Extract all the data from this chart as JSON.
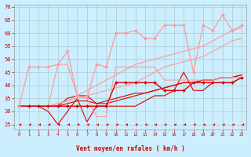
{
  "background_color": "#cceeff",
  "grid_color": "#aacccc",
  "xlabel": "Vent moyen/en rafales ( km/h )",
  "ylabel_ticks": [
    25,
    30,
    35,
    40,
    45,
    50,
    55,
    60,
    65,
    70
  ],
  "xlim": [
    -0.5,
    23.5
  ],
  "ylim": [
    23,
    71
  ],
  "x_values": [
    0,
    1,
    2,
    3,
    4,
    5,
    6,
    7,
    8,
    9,
    10,
    11,
    12,
    13,
    14,
    15,
    16,
    17,
    18,
    19,
    20,
    21,
    22,
    23
  ],
  "series": [
    {
      "x": [
        0,
        1,
        2,
        3,
        4,
        5,
        6,
        7,
        8,
        9,
        10,
        11,
        12,
        13,
        14,
        15,
        16,
        17,
        18,
        19,
        20,
        21,
        22,
        23
      ],
      "y": [
        32,
        32,
        32,
        32,
        32,
        32,
        32,
        32,
        32,
        32,
        41,
        41,
        41,
        41,
        41,
        38,
        38,
        38,
        41,
        41,
        41,
        41,
        41,
        43
      ],
      "color": "#dd0000",
      "linewidth": 1.0,
      "marker": "D",
      "markersize": 2.0
    },
    {
      "x": [
        0,
        1,
        2,
        3,
        4,
        5,
        6,
        7,
        8,
        9,
        10,
        11,
        12,
        13,
        14,
        15,
        16,
        17,
        18,
        19,
        20,
        21,
        22,
        23
      ],
      "y": [
        32,
        32,
        32,
        30,
        25,
        30,
        35,
        26,
        32,
        32,
        32,
        32,
        32,
        34,
        36,
        36,
        38,
        45,
        38,
        38,
        41,
        41,
        41,
        43
      ],
      "color": "#dd0000",
      "linewidth": 0.8,
      "marker": null,
      "markersize": 0
    },
    {
      "x": [
        0,
        1,
        2,
        3,
        4,
        5,
        6,
        7,
        8,
        9,
        10,
        11,
        12,
        13,
        14,
        15,
        16,
        17,
        18,
        19,
        20,
        21,
        22,
        23
      ],
      "y": [
        32,
        32,
        32,
        32,
        32,
        35,
        36,
        36,
        33,
        33,
        34,
        35,
        36,
        37,
        38,
        39,
        40,
        41,
        41,
        42,
        42,
        43,
        43,
        44
      ],
      "color": "#dd0000",
      "linewidth": 0.8,
      "marker": null,
      "markersize": 0
    },
    {
      "x": [
        0,
        1,
        2,
        3,
        4,
        5,
        6,
        7,
        8,
        9,
        10,
        11,
        12,
        13,
        14,
        15,
        16,
        17,
        18,
        19,
        20,
        21,
        22,
        23
      ],
      "y": [
        32,
        32,
        32,
        32,
        32,
        33,
        34,
        34,
        33,
        34,
        35,
        36,
        37,
        37,
        38,
        39,
        40,
        41,
        41,
        42,
        42,
        43,
        43,
        44
      ],
      "color": "#dd0000",
      "linewidth": 0.8,
      "marker": null,
      "markersize": 0
    },
    {
      "x": [
        0,
        1,
        2,
        3,
        4,
        5,
        6,
        7,
        8,
        9,
        10,
        11,
        12,
        13,
        14,
        15,
        16,
        17,
        18,
        19,
        20,
        21,
        22,
        23
      ],
      "y": [
        32,
        47,
        47,
        47,
        48,
        53,
        36,
        35,
        48,
        47,
        60,
        60,
        61,
        58,
        58,
        63,
        63,
        63,
        45,
        63,
        61,
        67,
        61,
        63
      ],
      "color": "#ff9999",
      "linewidth": 0.9,
      "marker": "D",
      "markersize": 2.0
    },
    {
      "x": [
        0,
        1,
        2,
        3,
        4,
        5,
        6,
        7,
        8,
        9,
        10,
        11,
        12,
        13,
        14,
        15,
        16,
        17,
        18,
        19,
        20,
        21,
        22,
        23
      ],
      "y": [
        32,
        32,
        32,
        32,
        48,
        48,
        36,
        35,
        28,
        28,
        47,
        47,
        47,
        47,
        47,
        42,
        42,
        42,
        42,
        42,
        42,
        43,
        43,
        43
      ],
      "color": "#ff9999",
      "linewidth": 0.8,
      "marker": null,
      "markersize": 0
    },
    {
      "x": [
        0,
        1,
        2,
        3,
        4,
        5,
        6,
        7,
        8,
        9,
        10,
        11,
        12,
        13,
        14,
        15,
        16,
        17,
        18,
        19,
        20,
        21,
        22,
        23
      ],
      "y": [
        32,
        32,
        32,
        32,
        33,
        34,
        36,
        38,
        40,
        42,
        44,
        46,
        48,
        49,
        50,
        51,
        52,
        53,
        54,
        55,
        57,
        59,
        61,
        62
      ],
      "color": "#ff9999",
      "linewidth": 0.8,
      "marker": null,
      "markersize": 0
    },
    {
      "x": [
        0,
        1,
        2,
        3,
        4,
        5,
        6,
        7,
        8,
        9,
        10,
        11,
        12,
        13,
        14,
        15,
        16,
        17,
        18,
        19,
        20,
        21,
        22,
        23
      ],
      "y": [
        32,
        32,
        32,
        32,
        33,
        34,
        35,
        36,
        37,
        38,
        39,
        40,
        41,
        43,
        45,
        47,
        48,
        49,
        50,
        51,
        53,
        55,
        57,
        58
      ],
      "color": "#ff9999",
      "linewidth": 0.8,
      "marker": null,
      "markersize": 0
    }
  ],
  "xlabel_color": "#cc0000",
  "tick_color": "#cc0000",
  "arrow_color": "#cc0000"
}
